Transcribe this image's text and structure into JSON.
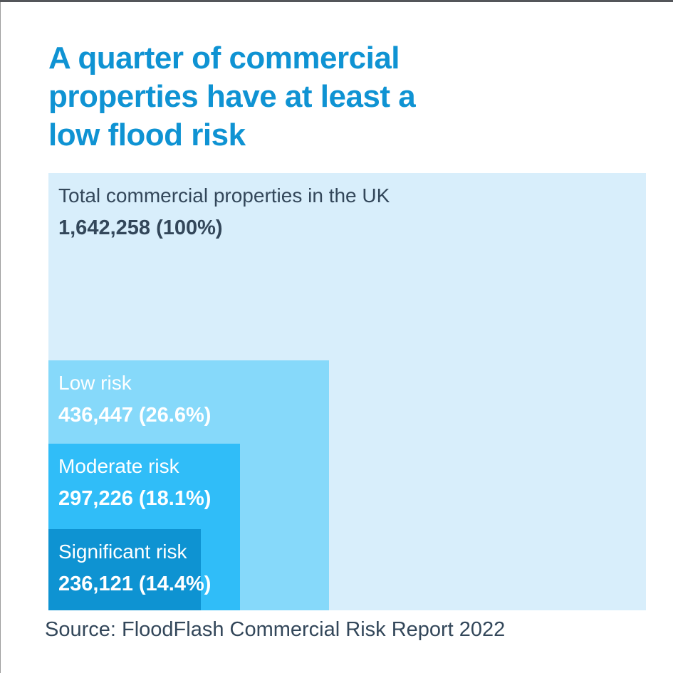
{
  "header": {
    "title_lines": [
      "A quarter of commercial",
      "properties have at least a",
      "low flood risk"
    ]
  },
  "blocks": {
    "total": {
      "label": "Total commercial properties in the UK",
      "value": "1,642,258 (100%)"
    },
    "low": {
      "label": "Low risk",
      "value": "436,447 (26.6%)"
    },
    "moderate": {
      "label": "Moderate risk",
      "value": "297,226 (18.1%)"
    },
    "significant": {
      "label": "Significant risk",
      "value": "236,121 (14.4%)"
    }
  },
  "footer": {
    "source": "Source: FloodFlash Commercial Risk Report 2022"
  },
  "colors": {
    "title_blue": "#0f93d3",
    "total_bg": "#d8eefb",
    "low_bg": "#86d9fa",
    "moderate_bg": "#30bdf8",
    "significant_bg": "#0e93d2",
    "dark_text": "#33475a",
    "white_text": "#ffffff",
    "top_edge": "#54565a",
    "left_edge": "#9c9c9c"
  },
  "chart_data": {
    "type": "area",
    "variant": "nested-proportional-rectangles",
    "title": "A quarter of commercial properties have at least a low flood risk",
    "categories": [
      "Total commercial properties in the UK",
      "Low risk",
      "Moderate risk",
      "Significant risk"
    ],
    "values": [
      1642258,
      436447,
      297226,
      236121
    ],
    "percents": [
      100,
      26.6,
      18.1,
      14.4
    ],
    "value_labels": [
      "1,642,258 (100%)",
      "436,447 (26.6%)",
      "297,226 (18.1%)",
      "236,121 (14.4%)"
    ],
    "legend_position": "none",
    "grid": false,
    "source": "Source: FloodFlash Commercial Risk Report 2022"
  }
}
